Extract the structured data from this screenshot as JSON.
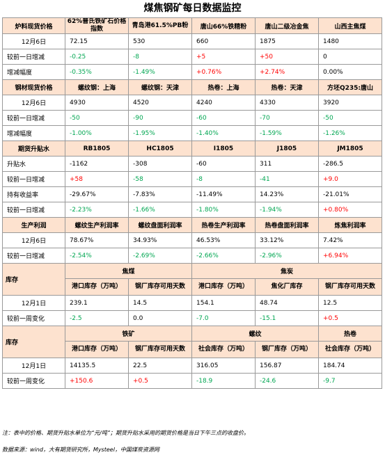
{
  "title": "煤焦钢矿每日数据监控",
  "s1": {
    "headers": [
      "炉料现货价格",
      "62%普氏铁矿石价格指数",
      "青岛港61.5%PB粉",
      "唐山66%铁精粉",
      "唐山二级冶金焦",
      "山西主焦煤"
    ],
    "r1": [
      "12月6日",
      "72.15",
      "530",
      "660",
      "1875",
      "1480"
    ],
    "r2": [
      "较前一日增减",
      "-0.25",
      "-8",
      "+5",
      "+50",
      "0"
    ],
    "r3": [
      "增减幅度",
      "-0.35%",
      "-1.49%",
      "+0.76%",
      "+2.74%",
      "0.00%"
    ]
  },
  "s2": {
    "headers": [
      "钢材现货价格",
      "螺纹钢：上海",
      "螺纹钢：天津",
      "热卷：上海",
      "热卷：天津",
      "方坯Q235:唐山"
    ],
    "r1": [
      "12月6日",
      "4930",
      "4520",
      "4240",
      "4330",
      "3920"
    ],
    "r2": [
      "较前一日增减",
      "-50",
      "-90",
      "-60",
      "-70",
      "-50"
    ],
    "r3": [
      "增减幅度",
      "-1.00%",
      "-1.95%",
      "-1.40%",
      "-1.59%",
      "-1.26%"
    ]
  },
  "s3": {
    "headers": [
      "期货升贴水",
      "RB1805",
      "HC1805",
      "I1805",
      "J1805",
      "JM1805"
    ],
    "r1": [
      "升贴水",
      "-1162",
      "-308",
      "-60",
      "311",
      "-286.5"
    ],
    "r2": [
      "较前一日增减",
      "+58",
      "-58",
      "-8",
      "-41",
      "+9.0"
    ],
    "r3": [
      "持有收益率",
      "-29.67%",
      "-7.83%",
      "-11.49%",
      "14.23%",
      "-21.01%"
    ],
    "r4": [
      "较前一日增减",
      "-2.23%",
      "-1.66%",
      "-1.80%",
      "-1.94%",
      "+0.80%"
    ]
  },
  "s4": {
    "headers": [
      "生产利润",
      "螺纹生产利润率",
      "螺纹盘面利润率",
      "热卷生产利润率",
      "热卷盘面利润率",
      "炼焦利润率"
    ],
    "r1": [
      "12月6日",
      "78.67%",
      "34.93%",
      "46.53%",
      "33.12%",
      "7.42%"
    ],
    "r2": [
      "较前一日增减",
      "-2.54%",
      "-2.69%",
      "-2.66%",
      "-2.96%",
      "+6.94%"
    ]
  },
  "s5": {
    "label": "库存",
    "group1": "焦煤",
    "group2": "焦炭",
    "sub": [
      "港口库存（万吨）",
      "钢厂库存可用天数",
      "港口库存（万吨）",
      "焦化厂库存",
      "钢厂库存可用天数"
    ],
    "r1": [
      "12月1日",
      "239.1",
      "14.5",
      "154.1",
      "48.74",
      "12.5"
    ],
    "r2": [
      "较前一周变化",
      "-2.5",
      "0.0",
      "-7.0",
      "-15.1",
      "+0.5"
    ]
  },
  "s6": {
    "label": "库存",
    "group1": "铁矿",
    "group2": "螺纹",
    "group3": "热卷",
    "sub": [
      "港口库存（万吨）",
      "钢厂库存可用天数",
      "社会库存（万吨）",
      "钢厂库存（万吨）",
      "社会库存（万吨）"
    ],
    "r1": [
      "12月1日",
      "14135.5",
      "22.5",
      "316.05",
      "156.87",
      "184.74"
    ],
    "r2": [
      "较前一周变化",
      "+150.6",
      "+0.5",
      "-18.9",
      "-24.6",
      "-9.7"
    ]
  },
  "note": "注：表中的价格、期货升贴水单位为“元/吨”；期货升贴水采用的期货价格是当日下午三点的收盘价。",
  "source": "数据来源：wind，大有期货研究所，Mysteel，中国煤炭资源网"
}
